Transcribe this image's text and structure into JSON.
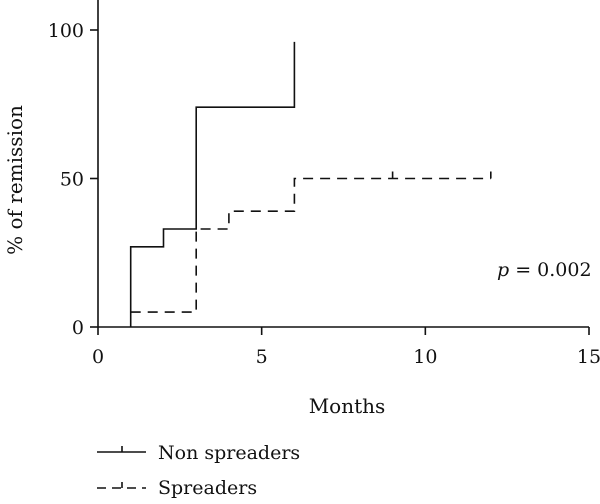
{
  "chart_data": {
    "type": "line",
    "xlabel": "Months",
    "ylabel": "% of remission",
    "xlim": [
      0,
      15
    ],
    "ylim": [
      0,
      100
    ],
    "x_ticks": [
      "0",
      "5",
      "10",
      "15"
    ],
    "y_ticks": [
      "0",
      "50",
      "100"
    ],
    "grid": false,
    "legend_position": "bottom-left",
    "annotation": {
      "prefix": "p",
      "text": " = 0.002"
    },
    "series": [
      {
        "name": "Non spreaders",
        "style": "solid",
        "steps": [
          [
            1,
            0
          ],
          [
            1,
            27
          ],
          [
            2,
            27
          ],
          [
            2,
            33
          ],
          [
            3,
            33
          ],
          [
            3,
            74
          ],
          [
            6,
            74
          ],
          [
            6,
            96
          ]
        ],
        "censored": []
      },
      {
        "name": "Spreaders",
        "style": "dashed",
        "steps": [
          [
            1,
            5
          ],
          [
            3,
            5
          ],
          [
            3,
            33
          ],
          [
            4,
            33
          ],
          [
            4,
            39
          ],
          [
            6,
            39
          ],
          [
            6,
            50
          ],
          [
            12,
            50
          ]
        ],
        "censored": [
          9,
          12
        ]
      }
    ]
  }
}
